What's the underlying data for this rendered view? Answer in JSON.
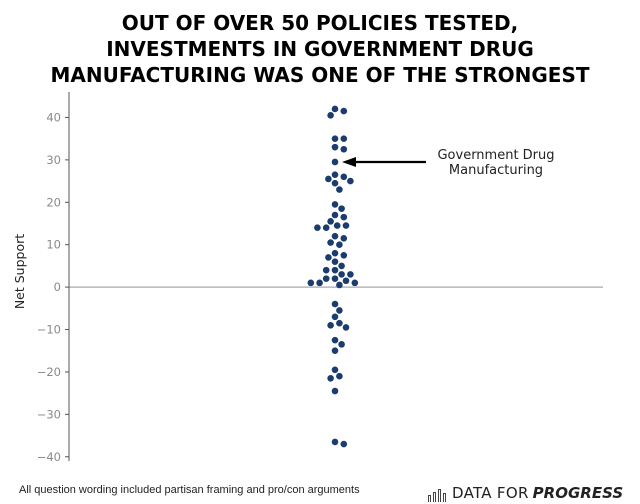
{
  "title_lines": [
    "OUT OF OVER 50 POLICIES TESTED,",
    "INVESTMENTS IN GOVERNMENT DRUG",
    "MANUFACTURING WAS ONE OF THE STRONGEST"
  ],
  "footnote": "All question wording included partisan framing and pro/con arguments",
  "brand": {
    "part1": "DATA FOR",
    "part2": "PROGRESS",
    "icon": "bar-chart-icon"
  },
  "colors": {
    "point": "#1b3d6d",
    "axis": "#555555",
    "zero_line": "#aaaaaa",
    "arrow": "#000000"
  },
  "chart_data": {
    "type": "scatter",
    "title": "OUT OF OVER 50 POLICIES TESTED, INVESTMENTS IN GOVERNMENT DRUG MANUFACTURING WAS ONE OF THE STRONGEST",
    "xlabel": "",
    "ylabel": "Net Support",
    "ylim": [
      -41,
      46
    ],
    "yticks": [
      40,
      30,
      20,
      10,
      0,
      -10,
      -20,
      -30,
      -40
    ],
    "ytick_labels": [
      "40",
      "30",
      "20",
      "10",
      "0",
      "−10",
      "−20",
      "−30",
      "−40"
    ],
    "zero_line": 0,
    "series": [
      {
        "name": "Policies",
        "values": [
          42,
          41.5,
          40.5,
          35,
          35,
          33,
          32.5,
          29.5,
          26.5,
          26,
          25.5,
          25,
          24.5,
          23,
          19.5,
          18.5,
          17,
          16.5,
          15.5,
          14.5,
          14.5,
          14,
          14,
          12,
          11.5,
          10.5,
          10,
          8,
          7.5,
          7,
          6,
          5,
          4,
          4,
          3,
          3,
          2,
          2,
          1.5,
          1,
          1,
          1,
          0.5,
          -4,
          -5.5,
          -7,
          -8.5,
          -9,
          -9.5,
          -12.5,
          -13.5,
          -15,
          -19.5,
          -21,
          -21.5,
          -24.5,
          -36.5,
          -37
        ]
      }
    ],
    "annotations": [
      {
        "text_lines": [
          "Government Drug",
          "Manufacturing"
        ],
        "value": 29.5
      }
    ]
  }
}
